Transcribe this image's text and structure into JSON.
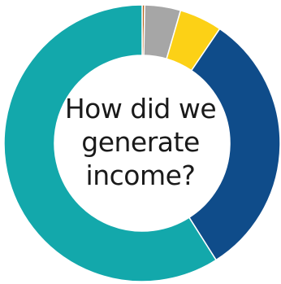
{
  "chart_data": {
    "type": "pie",
    "style": "donut",
    "title": "How did we\ngenerate\nincome?",
    "slices": [
      {
        "value": 0.3,
        "color": "#b5651d"
      },
      {
        "value": 4.2,
        "color": "#a6a6a6"
      },
      {
        "value": 5.0,
        "color": "#fcd116"
      },
      {
        "value": 31.5,
        "color": "#0f4c8a"
      },
      {
        "value": 59.0,
        "color": "#13a8ab"
      }
    ],
    "legend": "none"
  }
}
